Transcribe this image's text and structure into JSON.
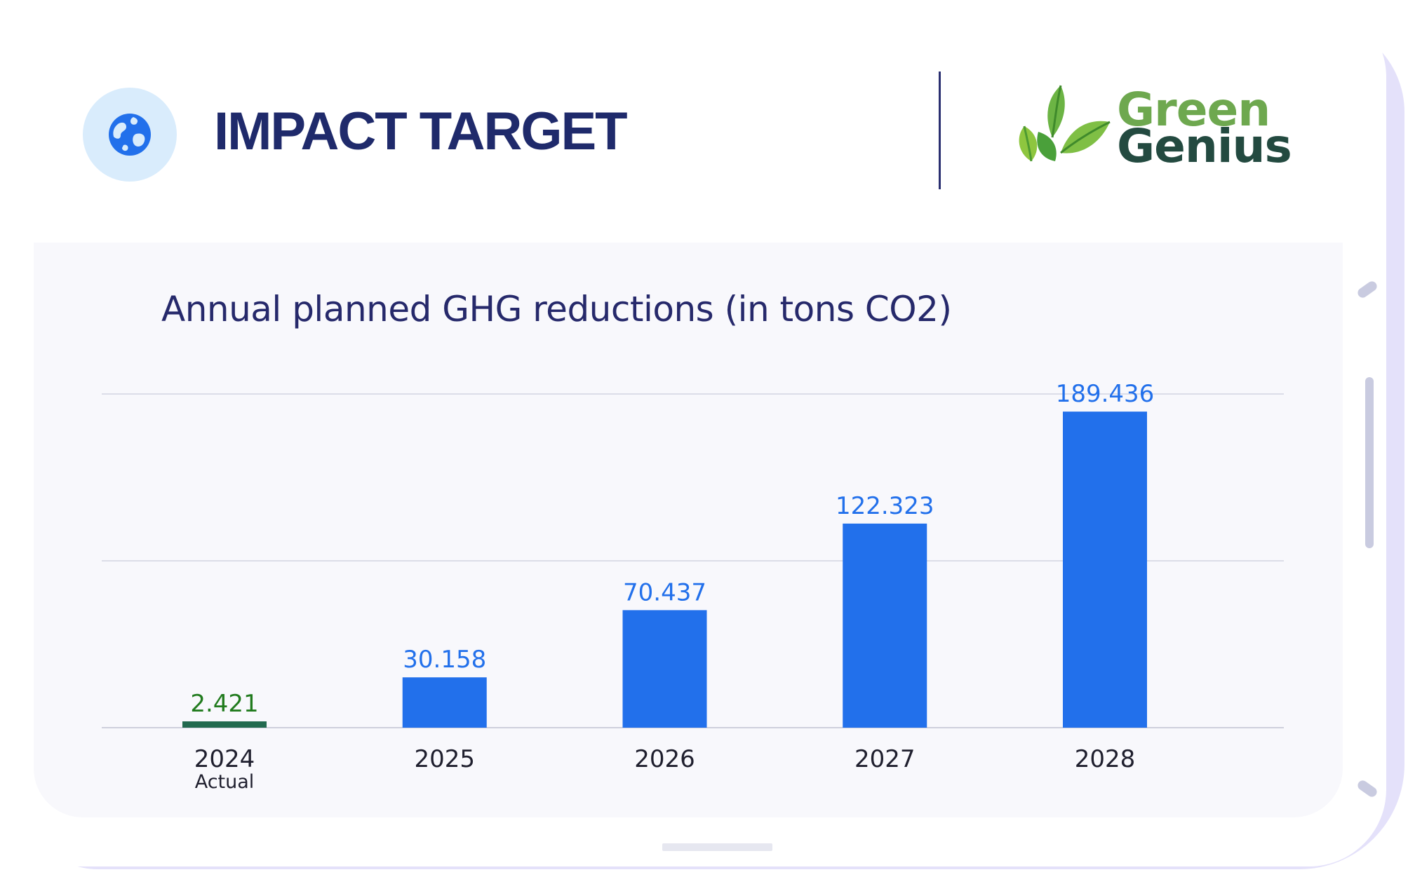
{
  "header": {
    "icon": "globe-icon",
    "title": "IMPACT TARGET",
    "brand": {
      "line1": "Green",
      "line2": "Genius",
      "icon": "leaves-logo"
    }
  },
  "colors": {
    "title": "#1f2a6b",
    "accent_blue": "#2270eb",
    "actual_green": "#217b1e",
    "actual_bar": "#226a4f",
    "brand_green": "#6ea84f",
    "brand_dark": "#234a40"
  },
  "chart_data": {
    "type": "bar",
    "title": "Annual planned GHG reductions (in tons CO2)",
    "categories": [
      "2024",
      "2025",
      "2026",
      "2027",
      "2028"
    ],
    "category_sublabels": [
      "Actual",
      "",
      "",
      "",
      ""
    ],
    "values": [
      2421,
      30158,
      70437,
      122323,
      189436
    ],
    "value_labels": [
      "2.421",
      "30.158",
      "70.437",
      "122.323",
      "189.436"
    ],
    "xlabel": "",
    "ylabel": "",
    "ylim": [
      0,
      200000
    ],
    "grid": true,
    "legend": "none"
  }
}
